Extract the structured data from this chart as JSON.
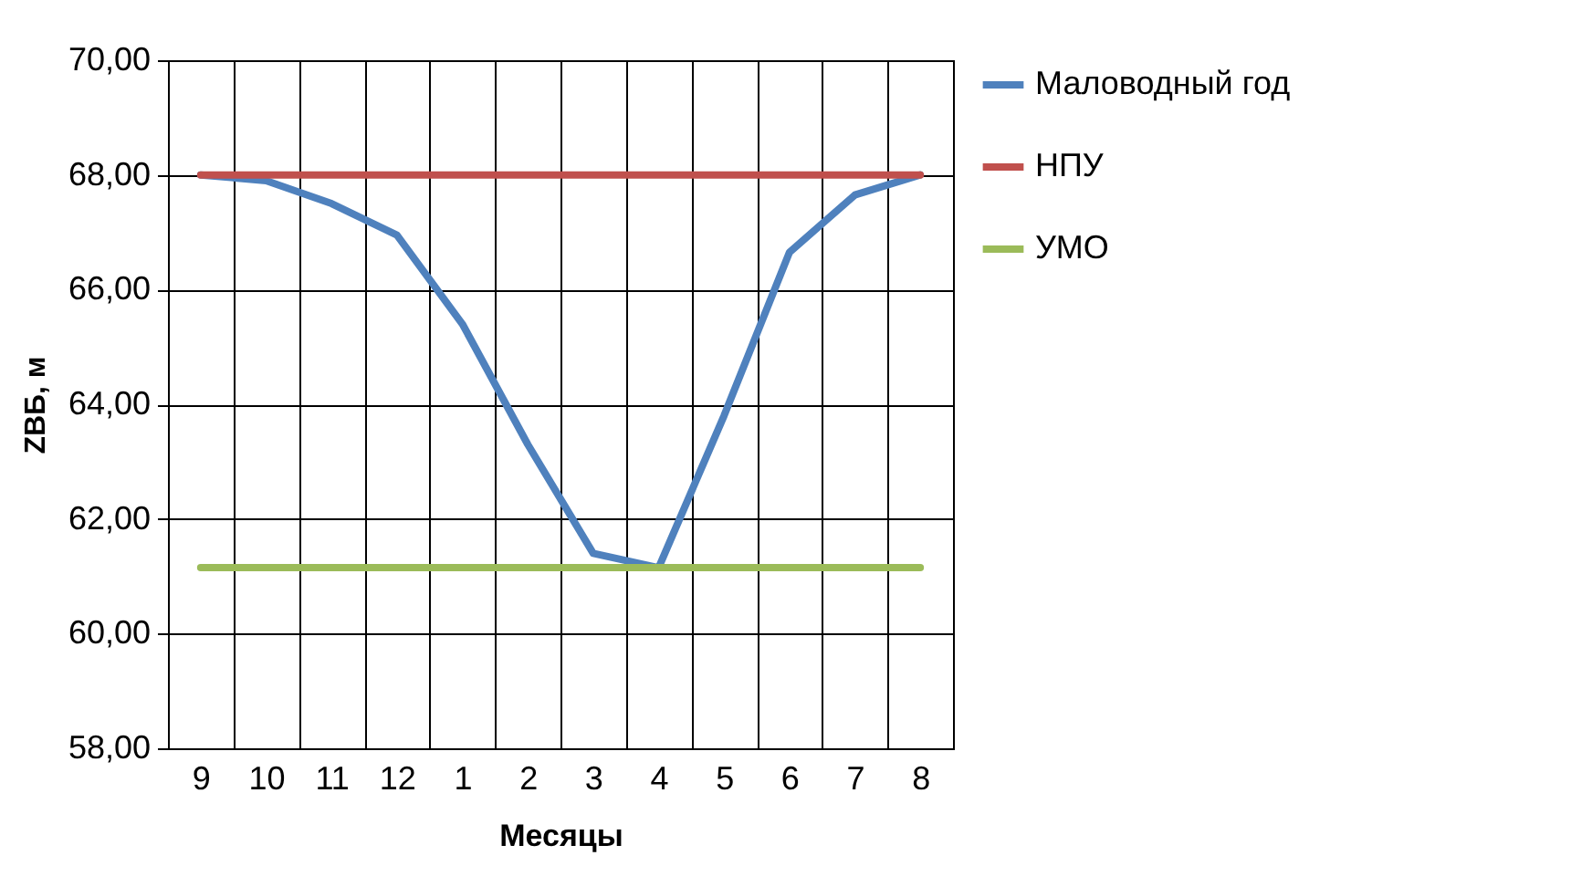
{
  "chart_data": {
    "type": "line",
    "xlabel": "Месяцы",
    "ylabel": "ZВБ, м",
    "categories": [
      "9",
      "10",
      "11",
      "12",
      "1",
      "2",
      "3",
      "4",
      "5",
      "6",
      "7",
      "8"
    ],
    "series": [
      {
        "name": "Маловодный год",
        "color": "#4f81bd",
        "values": [
          68.0,
          67.9,
          67.5,
          66.95,
          65.4,
          63.3,
          61.4,
          61.15,
          63.8,
          66.65,
          67.65,
          68.0
        ]
      },
      {
        "name": "НПУ",
        "color": "#c0504d",
        "values": [
          68,
          68,
          68,
          68,
          68,
          68,
          68,
          68,
          68,
          68,
          68,
          68
        ]
      },
      {
        "name": "УМО",
        "color": "#9bbb59",
        "values": [
          61.15,
          61.15,
          61.15,
          61.15,
          61.15,
          61.15,
          61.15,
          61.15,
          61.15,
          61.15,
          61.15,
          61.15
        ]
      }
    ],
    "ylim": [
      58,
      70
    ],
    "yticks": [
      {
        "value": 58,
        "label": "58,00"
      },
      {
        "value": 60,
        "label": "60,00"
      },
      {
        "value": 62,
        "label": "62,00"
      },
      {
        "value": 64,
        "label": "64,00"
      },
      {
        "value": 66,
        "label": "66,00"
      },
      {
        "value": 68,
        "label": "68,00"
      },
      {
        "value": 70,
        "label": "70,00"
      }
    ],
    "grid": true,
    "legend": "right",
    "marker": "none",
    "line_style": "solid"
  }
}
